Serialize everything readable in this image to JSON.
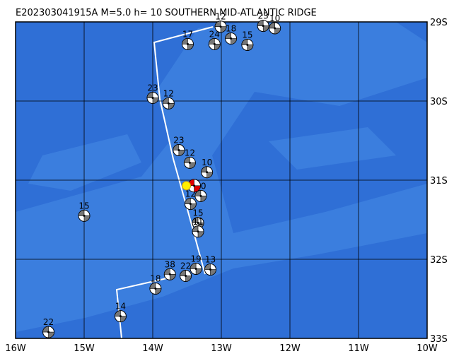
{
  "map": {
    "title": "E202303041915A M=5.0 h= 10 SOUTHERN MID-ATLANTIC RIDGE",
    "lon_range": [
      -16,
      -10
    ],
    "lat_range": [
      -29,
      -33
    ],
    "lon_ticks": [
      {
        "value": -16,
        "label": "16W"
      },
      {
        "value": -15,
        "label": "15W"
      },
      {
        "value": -14,
        "label": "14W"
      },
      {
        "value": -13,
        "label": "13W"
      },
      {
        "value": -12,
        "label": "12W"
      },
      {
        "value": -11,
        "label": "11W"
      },
      {
        "value": -10,
        "label": "10W"
      }
    ],
    "lat_ticks": [
      {
        "value": -29,
        "label": "29S"
      },
      {
        "value": -30,
        "label": "30S"
      },
      {
        "value": -31,
        "label": "31S"
      },
      {
        "value": -32,
        "label": "32S"
      },
      {
        "value": -33,
        "label": "33S"
      }
    ],
    "events": [
      {
        "label": "22",
        "lon": -15.52,
        "lat": -32.92
      },
      {
        "label": "14",
        "lon": -14.47,
        "lat": -32.72
      },
      {
        "label": "18",
        "lon": -13.96,
        "lat": -32.37
      },
      {
        "label": "15",
        "lon": -15.0,
        "lat": -31.45
      },
      {
        "label": "23",
        "lon": -14.0,
        "lat": -29.96
      },
      {
        "label": "12",
        "lon": -13.77,
        "lat": -30.03
      },
      {
        "label": "23",
        "lon": -13.62,
        "lat": -30.62
      },
      {
        "label": "12",
        "lon": -13.46,
        "lat": -30.78
      },
      {
        "label": "10",
        "lon": -13.21,
        "lat": -30.9
      },
      {
        "label": "15",
        "lon": -12.62,
        "lat": -29.29
      },
      {
        "label": "17",
        "lon": -13.49,
        "lat": -29.28
      },
      {
        "label": "24",
        "lon": -13.1,
        "lat": -29.28
      },
      {
        "label": "12",
        "lon": -13.01,
        "lat": -29.06
      },
      {
        "label": "18",
        "lon": -12.86,
        "lat": -29.21
      },
      {
        "label": "23",
        "lon": -12.39,
        "lat": -29.05
      },
      {
        "label": "10",
        "lon": -12.22,
        "lat": -29.08
      },
      {
        "label": "22",
        "lon": -13.52,
        "lat": -32.21
      },
      {
        "label": "19",
        "lon": -13.37,
        "lat": -32.12
      },
      {
        "label": "13",
        "lon": -13.16,
        "lat": -32.13
      },
      {
        "label": "38",
        "lon": -13.75,
        "lat": -32.19
      },
      {
        "label": "15",
        "lon": -13.34,
        "lat": -31.54
      },
      {
        "label": "11",
        "lon": -13.34,
        "lat": -31.65
      },
      {
        "label": "10",
        "lon": -13.3,
        "lat": -31.2
      },
      {
        "label": "12",
        "lon": -13.45,
        "lat": -31.3
      }
    ],
    "main_event": {
      "lon": -13.51,
      "lat": -31.07
    }
  }
}
